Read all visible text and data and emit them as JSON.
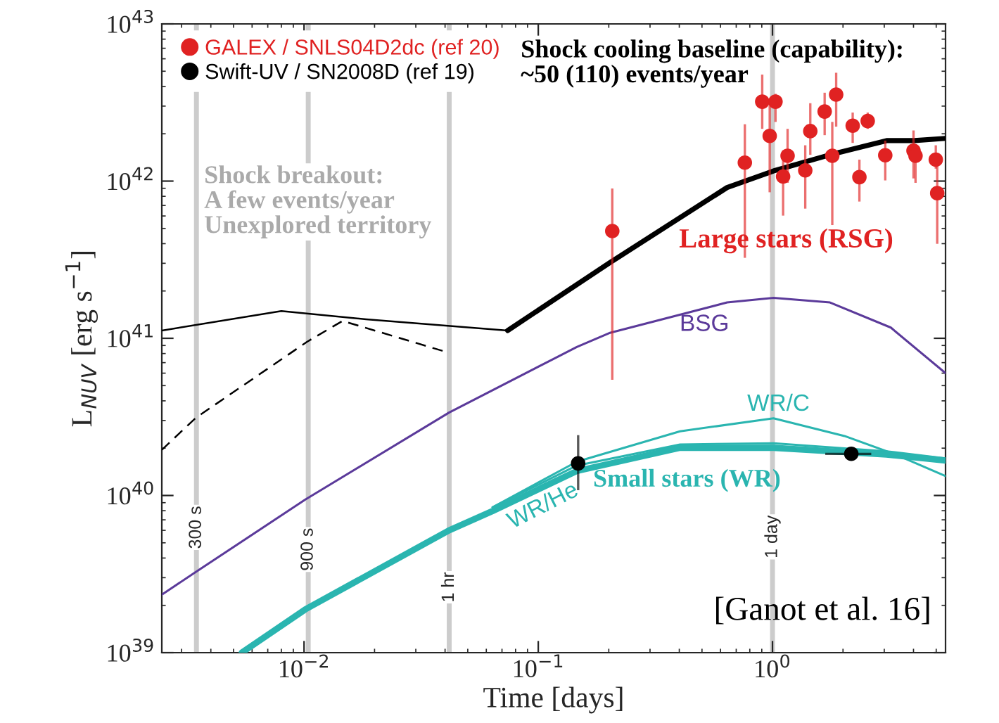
{
  "chart_data": {
    "type": "line",
    "xlabel": "Time [days]",
    "ylabel": "L$_{NUV}$ [erg s$^{−1}$]",
    "log": "xy",
    "xlim": [
      0.00247,
      5.48
    ],
    "ylim": [
      1e+39,
      1e+43
    ],
    "xticks": [
      {
        "value": 0.01,
        "label": "10$^{−2}$"
      },
      {
        "value": 0.1,
        "label": "10$^{−1}$"
      },
      {
        "value": 1,
        "label": "10$^{0}$"
      }
    ],
    "yticks": [
      {
        "value": 1e+39,
        "label": "10$^{39}$"
      },
      {
        "value": 1e+40,
        "label": "10$^{40}$"
      },
      {
        "value": 1e+41,
        "label": "10$^{41}$"
      },
      {
        "value": 1e+42,
        "label": "10$^{42}$"
      },
      {
        "value": 1e+43,
        "label": "10$^{43}$"
      }
    ],
    "grid": false,
    "legend": "top left",
    "series": [
      {
        "color": "#000000",
        "x": [
          0.00247,
          0.008,
          0.0184,
          0.074
        ],
        "values": [
          1.12e+41,
          1.49e+41,
          1.32e+41,
          1.12e+41
        ]
      },
      {
        "color": "#000000",
        "line_style": "dashed",
        "x": [
          0.00247,
          0.00345,
          0.0103,
          0.0146,
          0.0403
        ],
        "values": [
          1.95e+40,
          3.12e+40,
          9.5e+40,
          1.29e+41,
          8.2e+40
        ]
      },
      {
        "color": "#000000",
        "x": [
          0.074,
          0.202,
          0.64,
          1.01,
          1.76,
          3.07,
          4.04,
          5.48
        ],
        "values": [
          1.12e+41,
          3.03e+41,
          9.1e+41,
          1.16e+42,
          1.47e+42,
          1.81e+42,
          1.81e+42,
          1.87e+42
        ]
      },
      {
        "name": "BSG",
        "color": "#5b3a9a",
        "x": [
          0.00247,
          0.00345,
          0.0101,
          0.0416,
          0.146,
          0.201,
          0.64,
          1.01,
          1.76,
          3.2,
          5.48
        ],
        "values": [
          2.34e+39,
          3.26e+39,
          9.4e+39,
          3.37e+40,
          8.8e+40,
          1.08e+41,
          1.69e+41,
          1.81e+41,
          1.69e+41,
          1.17e+41,
          6e+40
        ]
      },
      {
        "name": "WR/C",
        "color": "#2ab5b0",
        "x": [
          0.0638,
          0.146,
          0.403,
          1.01,
          2.03,
          3.36,
          5.48
        ],
        "values": [
          8.4e+39,
          1.64e+40,
          2.56e+40,
          3.1e+40,
          2.39e+40,
          1.82e+40,
          1.33e+40
        ]
      },
      {
        "name": "WR/He",
        "color": "#2ab5b0",
        "x": [
          0.0638,
          0.146,
          0.403,
          1.01,
          3.07,
          5.48
        ],
        "values": [
          8.4e+39,
          1.55e+40,
          2.11e+40,
          2.15e+40,
          1.91e+40,
          1.72e+40
        ]
      },
      {
        "name": "Small stars (WR)",
        "color": "#2ab5b0",
        "x": [
          0.00542,
          0.0101,
          0.0416,
          0.0638,
          0.146,
          0.403,
          1.01,
          3.07,
          5.48
        ],
        "values": [
          1e+39,
          1.88e+39,
          6e+39,
          7.96e+39,
          1.43e+40,
          2.01e+40,
          2.01e+40,
          1.82e+40,
          1.67e+40
        ]
      },
      {
        "type": "scatter",
        "marker": "circle",
        "name": "GALEX / SNLS04D2dc (ref 20)",
        "color": "#e02222",
        "x": [
          0.207,
          0.762,
          0.904,
          0.973,
          1.03,
          1.11,
          1.16,
          1.38,
          1.45,
          1.67,
          1.8,
          1.87,
          2.2,
          2.35,
          2.55,
          3.03,
          4.0,
          4.08,
          4.98,
          5.05
        ],
        "values": [
          4.81e+41,
          1.31e+42,
          3.2e+42,
          1.94e+42,
          3.2e+42,
          1.07e+42,
          1.45e+42,
          1.17e+42,
          2.08e+42,
          2.77e+42,
          1.45e+42,
          3.55e+42,
          2.25e+42,
          1.06e+42,
          2.41e+42,
          1.46e+42,
          1.56e+42,
          1.45e+42,
          1.37e+42,
          8.38e+41
        ],
        "errors": [
          [
            5.45e+40,
            8.97e+41
          ],
          [
            3.25e+41,
            2.3e+42
          ],
          [
            2.15e+42,
            4.76e+42
          ],
          [
            8.49e+41,
            3.13e+42
          ],
          [
            2.38e+42,
            3.59e+42
          ],
          [
            6.03e+41,
            1.57e+42
          ],
          [
            9.75e+41,
            2.15e+42
          ],
          [
            6.68e+41,
            1.69e+42
          ],
          [
            1.47e+42,
            3.13e+42
          ],
          [
            1.96e+42,
            3.65e+42
          ],
          [
            5.25e+41,
            2.38e+42
          ],
          [
            2.22e+42,
            4.89e+42
          ],
          [
            1.75e+42,
            2.73e+42
          ],
          [
            7.41e+41,
            1.37e+42
          ],
          [
            2.15e+42,
            2.73e+42
          ],
          [
            1.01e+42,
            1.81e+42
          ],
          [
            1.04e+42,
            2.1e+42
          ],
          [
            9.75e+41,
            1.69e+42
          ],
          [
            1.2e+42,
            1.69e+42
          ],
          [
            3.99e+41,
            1.37e+42
          ]
        ]
      },
      {
        "type": "scatter",
        "marker": "circle",
        "name": "Swift-UV / SN2008D (ref 19)",
        "color": "#000000",
        "x": [
          0.148,
          2.17
        ],
        "values": [
          1.6e+40,
          1.84e+40
        ],
        "errors": [
          [
            1.08e+40,
            2.42e+40
          ],
          null
        ],
        "xerrors": [
          null,
          [
            1.68,
            2.64
          ]
        ]
      }
    ],
    "ref_lines": [
      {
        "axis": "x",
        "value": 0.003472,
        "label": "300 s",
        "color": "#cccccc"
      },
      {
        "axis": "x",
        "value": 0.01042,
        "label": "900 s",
        "color": "#cccccc"
      },
      {
        "axis": "x",
        "value": 0.04167,
        "label": "1 hr",
        "color": "#cccccc"
      },
      {
        "axis": "x",
        "value": 1,
        "label": "1 day",
        "color": "#cccccc"
      }
    ],
    "annotations": [
      "Shock cooling baseline (capability):\n~50 (110) events/year",
      "Shock breakout:\nA few events/year\nUnexplored territory",
      "Large stars (RSG)",
      "[Ganot et al. 16]"
    ]
  }
}
